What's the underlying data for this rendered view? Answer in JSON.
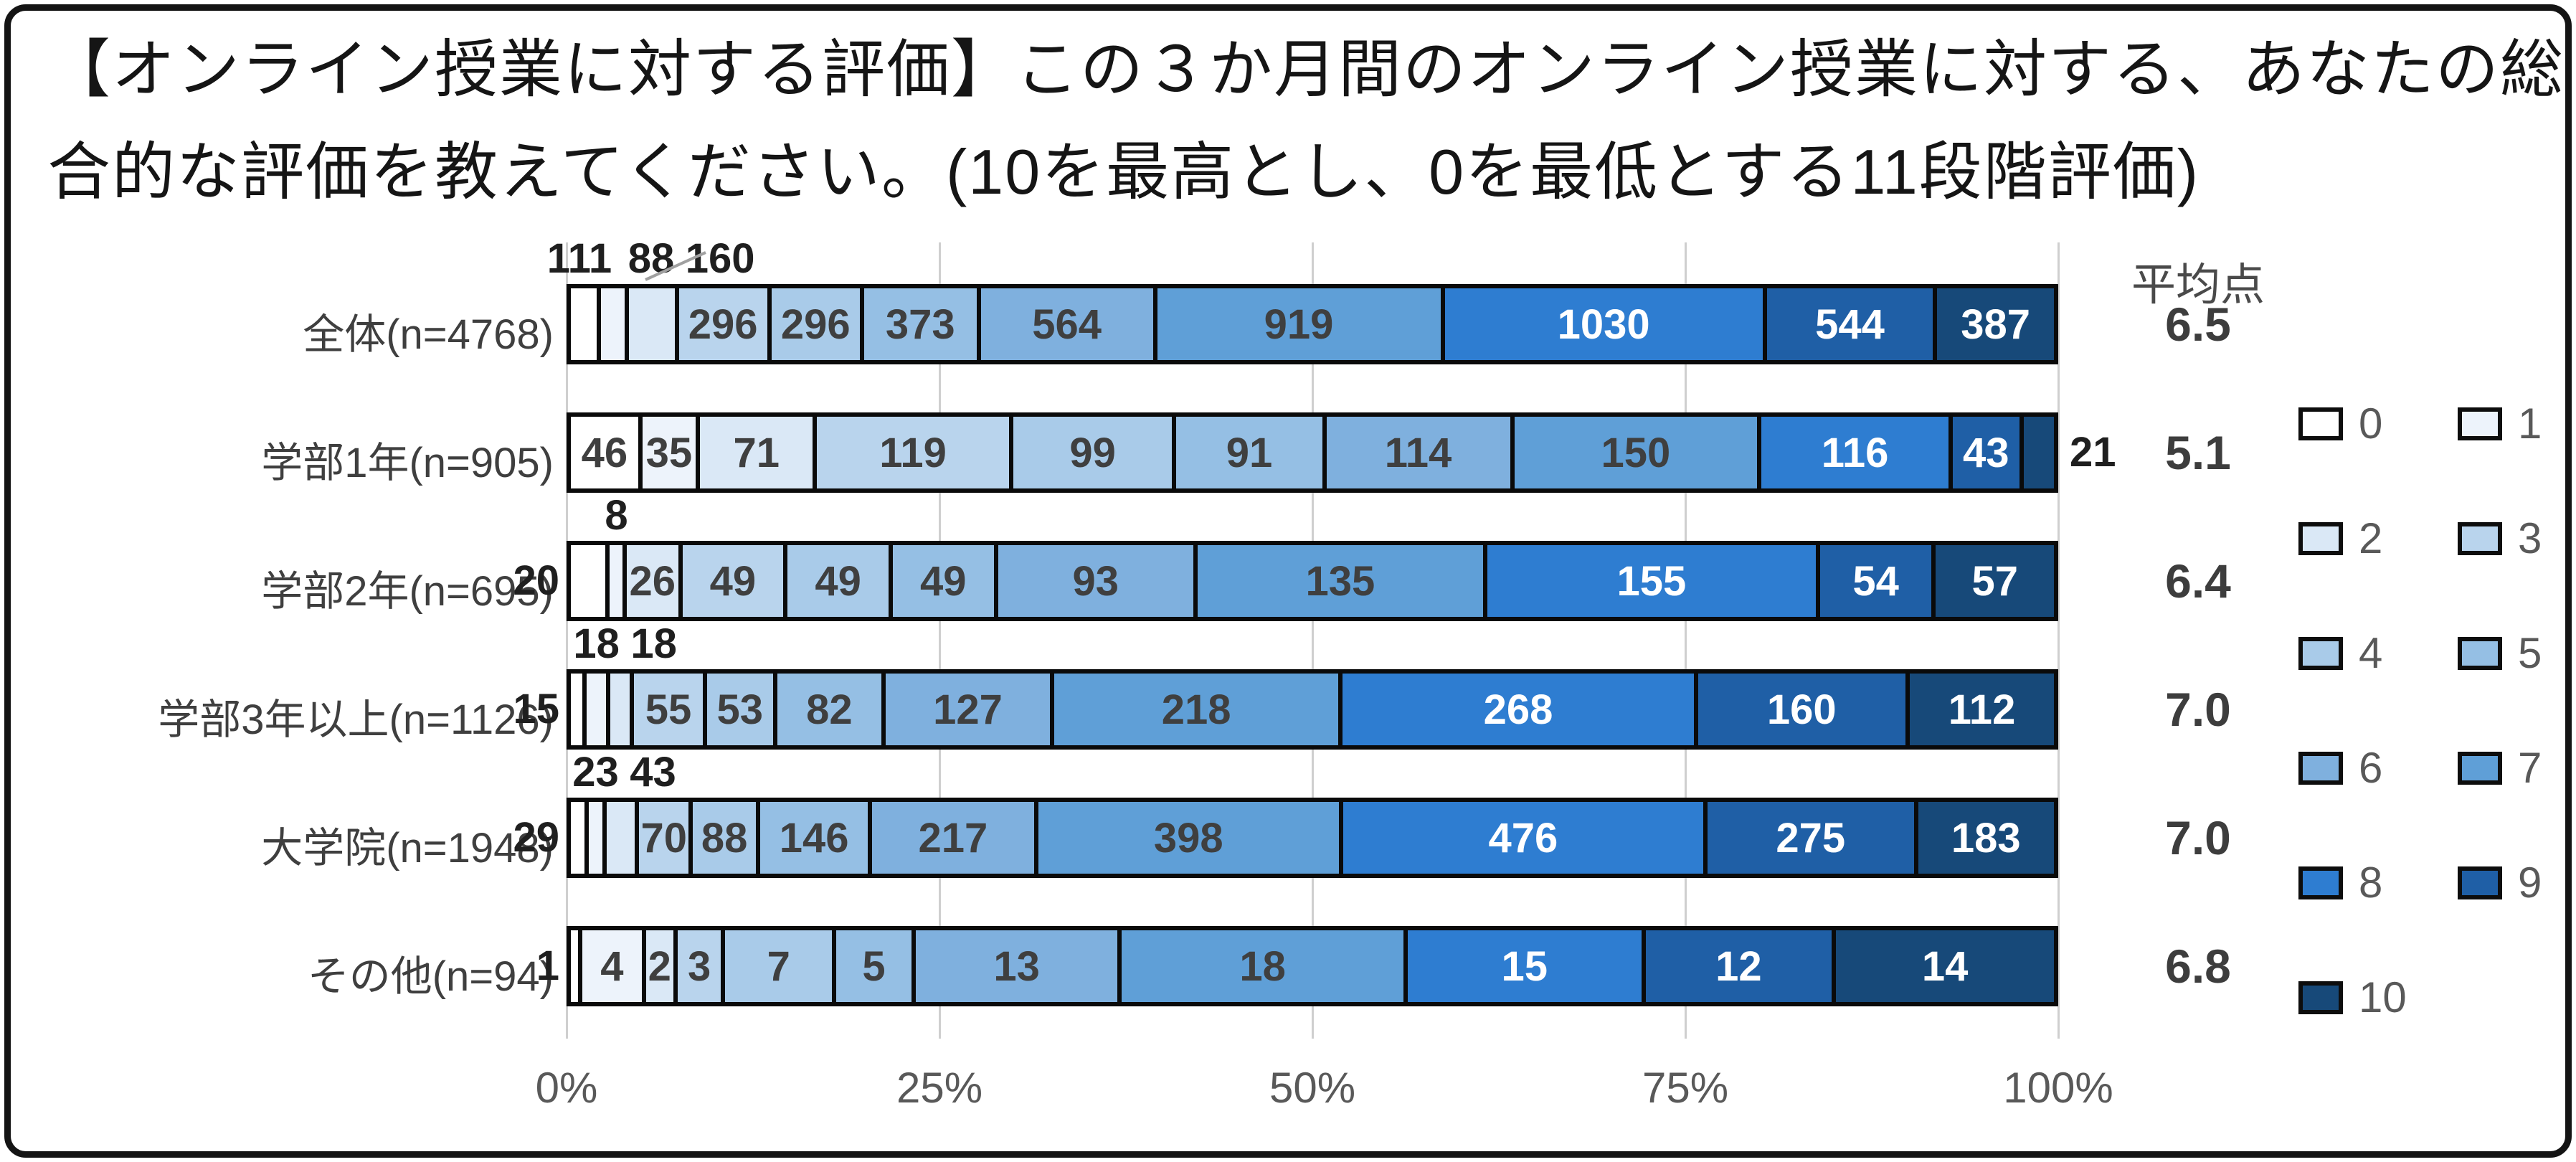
{
  "title": {
    "line1": "【オンライン授業に対する評価】この３か月間のオンライン授業に対する、あなたの総",
    "line2": "合的な評価を教えてください。(10を最高とし、0を最低とする11段階評価)"
  },
  "chart_data": {
    "type": "bar",
    "stacked": true,
    "orientation": "horizontal",
    "x_axis": {
      "tick_labels": [
        "0%",
        "25%",
        "50%",
        "75%",
        "100%"
      ],
      "range_percent": [
        0,
        100
      ],
      "gridlines": true
    },
    "legend": {
      "labels": [
        "0",
        "1",
        "2",
        "3",
        "4",
        "5",
        "6",
        "7",
        "8",
        "9",
        "10"
      ],
      "position": "right",
      "columns": 2
    },
    "series_colors": [
      "#FFFFFF",
      "#EDF3FB",
      "#DAE8F6",
      "#B9D4ED",
      "#A9CBE9",
      "#95BFE4",
      "#7FB0DE",
      "#5F9FD7",
      "#2E7DD1",
      "#1F5FA6",
      "#174979"
    ],
    "average_column_header": "平均点",
    "rows": [
      {
        "category": "全体(n=4768)",
        "n": 4768,
        "values": [
          111,
          88,
          160,
          296,
          296,
          373,
          564,
          919,
          1030,
          544,
          387
        ],
        "average": "6.5",
        "label_pos": [
          "above",
          "above",
          "above-leader",
          "in",
          "in",
          "in",
          "in",
          "in",
          "in",
          "in",
          "in"
        ]
      },
      {
        "category": "学部1年(n=905)",
        "n": 905,
        "values": [
          46,
          35,
          71,
          119,
          99,
          91,
          114,
          150,
          116,
          43,
          21
        ],
        "average": "5.1",
        "label_pos": [
          "in",
          "in",
          "in",
          "in",
          "in",
          "in",
          "in",
          "in",
          "in",
          "in",
          "right"
        ]
      },
      {
        "category": "学部2年(n=695)",
        "n": 695,
        "values": [
          20,
          8,
          26,
          49,
          49,
          49,
          93,
          135,
          155,
          54,
          57
        ],
        "average": "6.4",
        "label_pos": [
          "left",
          "above",
          "in",
          "in",
          "in",
          "in",
          "in",
          "in",
          "in",
          "in",
          "in"
        ]
      },
      {
        "category": "学部3年以上(n=1126)",
        "n": 1126,
        "values": [
          15,
          18,
          18,
          55,
          53,
          82,
          127,
          218,
          268,
          160,
          112
        ],
        "average": "7.0",
        "label_pos": [
          "left",
          "above",
          "above",
          "in",
          "in",
          "in",
          "in",
          "in",
          "in",
          "in",
          "in"
        ]
      },
      {
        "category": "大学院(n=1948)",
        "n": 1948,
        "values": [
          29,
          23,
          43,
          70,
          88,
          146,
          217,
          398,
          476,
          275,
          183
        ],
        "average": "7.0",
        "label_pos": [
          "left",
          "above",
          "above",
          "in",
          "in",
          "in",
          "in",
          "in",
          "in",
          "in",
          "in"
        ]
      },
      {
        "category": "その他(n=94)",
        "n": 94,
        "values": [
          1,
          4,
          2,
          3,
          7,
          5,
          13,
          18,
          15,
          12,
          14
        ],
        "average": "6.8",
        "label_pos": [
          "left",
          "in",
          "in",
          "in",
          "in",
          "in",
          "in",
          "in",
          "in",
          "in",
          "in"
        ]
      }
    ],
    "styles": {
      "grid_color": "#CFCFCF",
      "segment_border_color": "#0a0a0a",
      "inside_label_dark": "#3f3f3f",
      "inside_label_light": "#FFFFFF",
      "outside_label_color": "#1f1f1f",
      "axis_text_color": "#595959",
      "leader_line_color": "#A0A0A0",
      "white_label_from_index": 8
    }
  }
}
